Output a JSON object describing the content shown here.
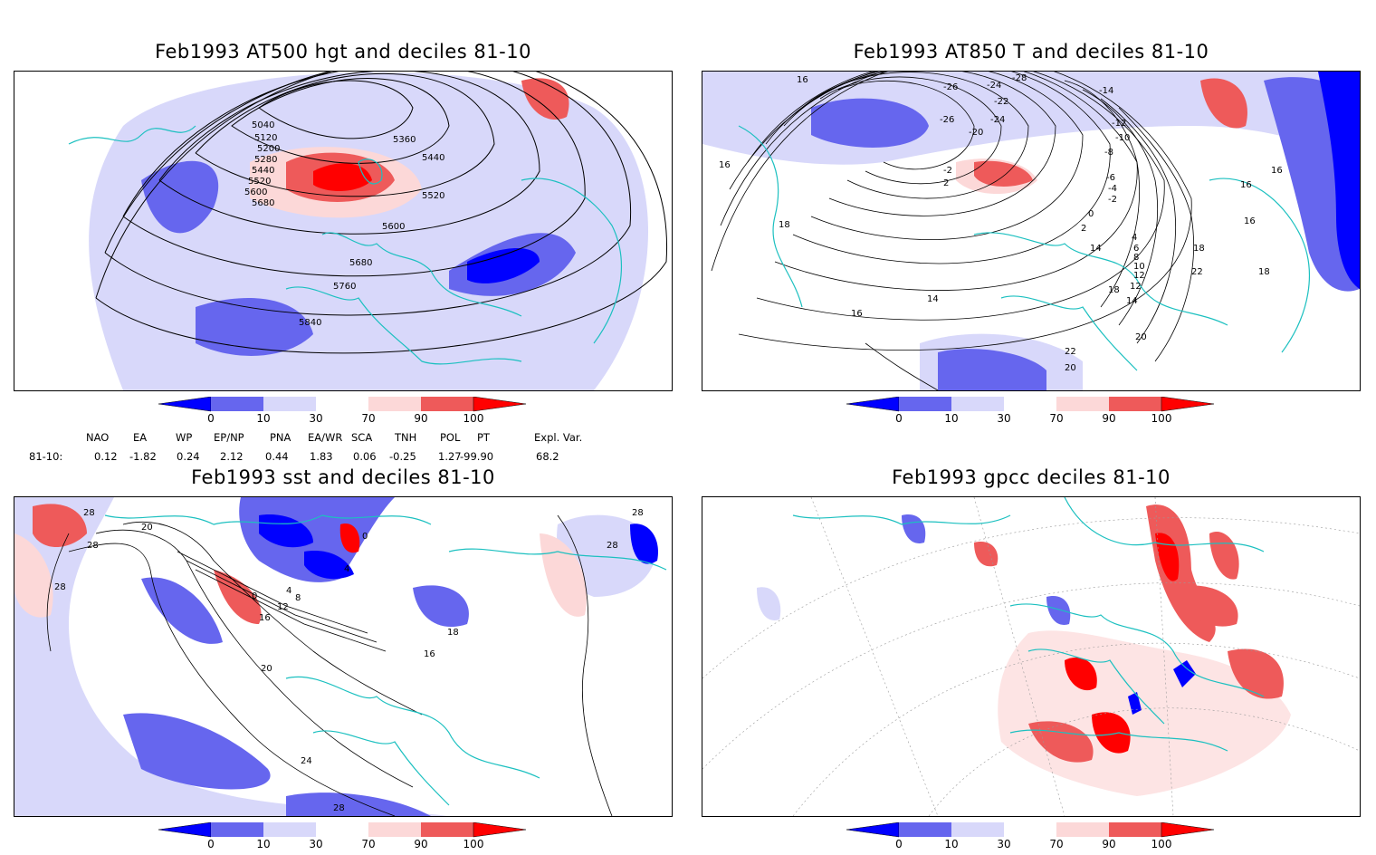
{
  "panels": [
    {
      "id": "p1",
      "title": "Feb1993 AT500 hgt and deciles 81-10",
      "contour_labels": [
        "5040",
        "5120",
        "5200",
        "5280",
        "5360",
        "5440",
        "5520",
        "5600",
        "5680",
        "5440",
        "5520",
        "5600",
        "5680",
        "5760",
        "5840"
      ]
    },
    {
      "id": "p2",
      "title": "Feb1993 AT850 T and deciles 81-10",
      "contour_labels": [
        "16",
        "16",
        "18",
        "16",
        "14",
        "16",
        "-26",
        "-24",
        "-28",
        "-26",
        "-24",
        "-22",
        "-20",
        "-2",
        "2",
        "-14",
        "-12",
        "-10",
        "-8",
        "-6",
        "-4",
        "-2",
        "0",
        "2",
        "4",
        "6",
        "8",
        "10",
        "12",
        "14",
        "16",
        "18",
        "22",
        "20",
        "18",
        "16",
        "18",
        "20",
        "22",
        "12",
        "14"
      ]
    },
    {
      "id": "p3",
      "title": "Feb1993 sst and deciles 81-10",
      "contour_labels": [
        "28",
        "28",
        "28",
        "20",
        "0",
        "4",
        "8",
        "12",
        "16",
        "20",
        "24",
        "28",
        "4",
        "0",
        "16",
        "18",
        "28",
        "28"
      ]
    },
    {
      "id": "p4",
      "title": "Feb1993 gpcc deciles 81-10",
      "contour_labels": []
    }
  ],
  "colorbar": {
    "ticks": [
      "0",
      "10",
      "30",
      "70",
      "90",
      "100"
    ],
    "colors": [
      "#0000ff",
      "#6666ee",
      "#d8d8fa",
      "#ffffff",
      "#fcd8d8",
      "#ee5a5a",
      "#ff0000"
    ]
  },
  "indices": {
    "headers": [
      "NAO",
      "EA",
      "WP",
      "EP/NP",
      "PNA",
      "EA/WR",
      "SCA",
      "TNH",
      "POL",
      "PT",
      "Expl. Var."
    ],
    "row_label": "81-10:",
    "values": [
      "0.12",
      "-1.82",
      "0.24",
      "2.12",
      "0.44",
      "1.83",
      "0.06",
      "-0.25",
      "1.27",
      "-99.90",
      "68.2"
    ]
  },
  "colors": {
    "coast": "#1cc0c0",
    "contour": "#000000",
    "frame": "#000000"
  }
}
